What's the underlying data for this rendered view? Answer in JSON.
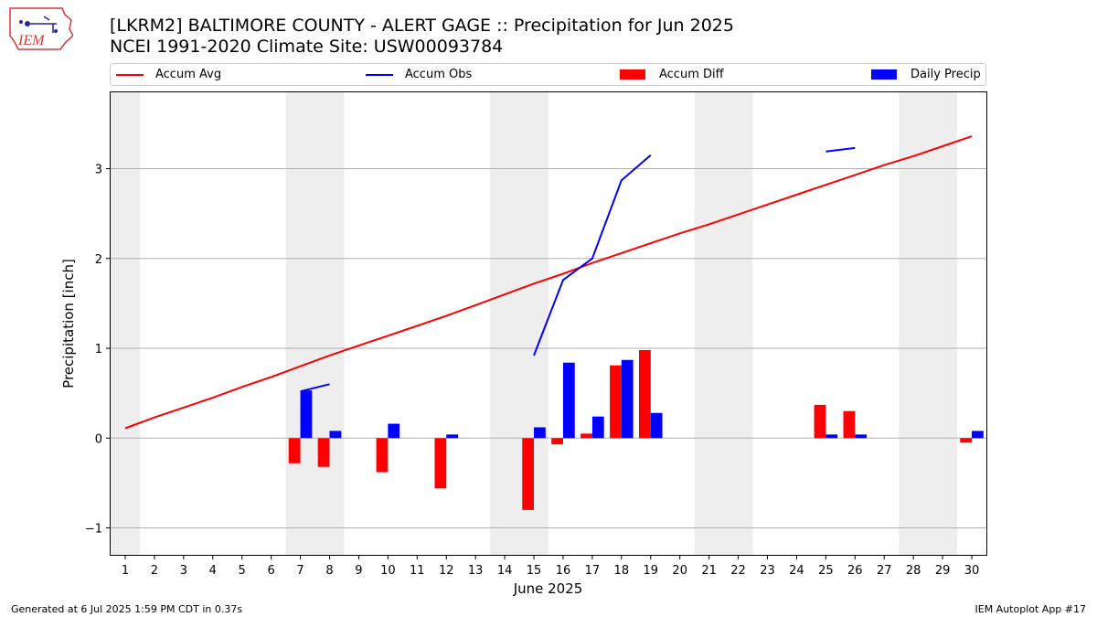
{
  "header": {
    "title_line1": "[LKRM2] BALTIMORE COUNTY - ALERT GAGE :: Precipitation for Jun 2025",
    "title_line2": "NCEI 1991-2020 Climate Site: USW00093784"
  },
  "logo": {
    "text": "IEM"
  },
  "footer": {
    "left": "Generated at 6 Jul 2025 1:59 PM CDT in 0.37s",
    "right": "IEM Autoplot App #17"
  },
  "legend": {
    "items": [
      {
        "label": "Accum Avg",
        "kind": "line",
        "color": "#ff0000"
      },
      {
        "label": "Accum Obs",
        "kind": "line",
        "color": "#0000ff"
      },
      {
        "label": "Accum Diff",
        "kind": "box",
        "color": "#ff0000"
      },
      {
        "label": "Daily Precip",
        "kind": "box",
        "color": "#0000ff"
      }
    ],
    "placement": "top, above plot"
  },
  "chart_data": {
    "type": "bar",
    "title": "[LKRM2] BALTIMORE COUNTY - ALERT GAGE :: Precipitation for Jun 2025",
    "subtitle": "NCEI 1991-2020 Climate Site: USW00093784",
    "xlabel": "June 2025",
    "ylabel": "Precipitation [inch]",
    "x": [
      1,
      2,
      3,
      4,
      5,
      6,
      7,
      8,
      9,
      10,
      11,
      12,
      13,
      14,
      15,
      16,
      17,
      18,
      19,
      20,
      21,
      22,
      23,
      24,
      25,
      26,
      27,
      28,
      29,
      30
    ],
    "xlim": [
      0.5,
      30.5
    ],
    "ylim": [
      -1.3,
      3.85
    ],
    "yticks": [
      -1,
      0,
      1,
      2,
      3
    ],
    "ytick_labels": [
      "−1",
      "0",
      "1",
      "2",
      "3"
    ],
    "grid": "horizontal",
    "weekend_shading": [
      [
        0.5,
        1.5
      ],
      [
        6.5,
        8.5
      ],
      [
        13.5,
        15.5
      ],
      [
        20.5,
        22.5
      ],
      [
        27.5,
        29.5
      ]
    ],
    "colors": {
      "avg": "#ff0000",
      "obs": "#0000ff",
      "diff": "#ff0000",
      "daily": "#0000ff",
      "shade": "#eeeeee",
      "grid": "#b0b0b0"
    },
    "series": [
      {
        "name": "Accum Avg",
        "type": "line",
        "values": [
          0.11,
          0.23,
          0.34,
          0.45,
          0.57,
          0.68,
          0.8,
          0.92,
          1.03,
          1.14,
          1.25,
          1.36,
          1.48,
          1.6,
          1.72,
          1.83,
          1.95,
          2.06,
          2.17,
          2.28,
          2.38,
          2.49,
          2.6,
          2.71,
          2.82,
          2.93,
          3.04,
          3.14,
          3.25,
          3.36
        ]
      },
      {
        "name": "Accum Obs",
        "type": "line",
        "values": [
          null,
          null,
          null,
          null,
          null,
          null,
          0.52,
          0.6,
          null,
          null,
          null,
          null,
          null,
          null,
          0.92,
          1.76,
          2.0,
          2.87,
          3.15,
          null,
          null,
          null,
          null,
          null,
          3.19,
          3.23,
          null,
          null,
          null,
          null
        ]
      },
      {
        "name": "Accum Diff",
        "type": "bar",
        "values": [
          0,
          0,
          0,
          0,
          0,
          0,
          -0.28,
          -0.32,
          0,
          -0.38,
          0,
          -0.56,
          0,
          0,
          -0.8,
          -0.07,
          0.05,
          0.81,
          0.98,
          0,
          0,
          0,
          0,
          0,
          0.37,
          0.3,
          0,
          0,
          0,
          -0.05
        ]
      },
      {
        "name": "Daily Precip",
        "type": "bar",
        "values": [
          0,
          0,
          0,
          0,
          0,
          0,
          0.53,
          0.08,
          0,
          0.16,
          0,
          0.04,
          0,
          0,
          0.12,
          0.84,
          0.24,
          0.87,
          0.28,
          0,
          0,
          0,
          0,
          0,
          0.04,
          0.04,
          0,
          0,
          0,
          0.08
        ]
      }
    ]
  }
}
